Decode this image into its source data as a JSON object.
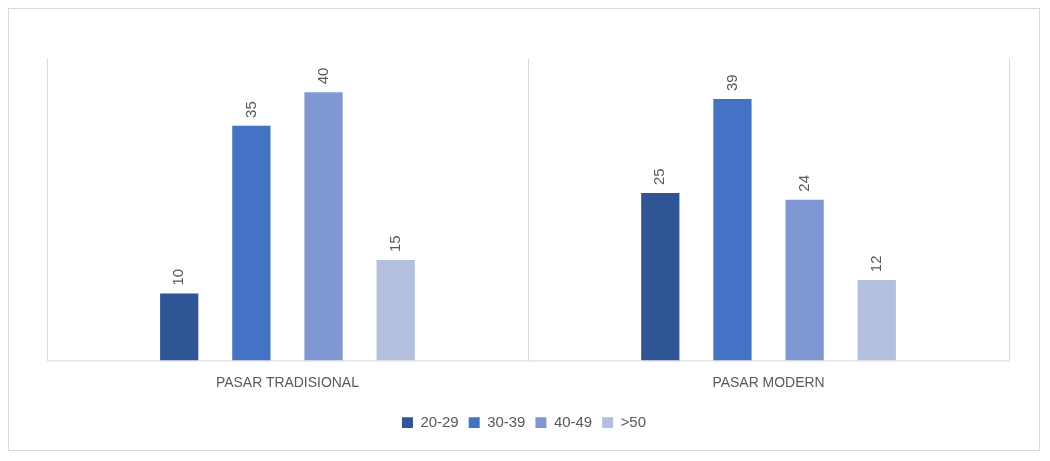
{
  "chart_data": {
    "type": "bar",
    "categories": [
      "PASAR TRADISIONAL",
      "PASAR MODERN"
    ],
    "series": [
      {
        "name": "20-29",
        "color": "#2f5597",
        "values": [
          10,
          25
        ]
      },
      {
        "name": "30-39",
        "color": "#4472c4",
        "values": [
          35,
          39
        ]
      },
      {
        "name": "40-49",
        "color": "#7f97d3",
        "values": [
          40,
          24
        ]
      },
      {
        "name": ">50",
        "color": "#b4bfe0",
        "values": [
          15,
          12
        ]
      }
    ],
    "data_labels": true,
    "grid": "x",
    "legend": "bottom",
    "relative": false
  }
}
